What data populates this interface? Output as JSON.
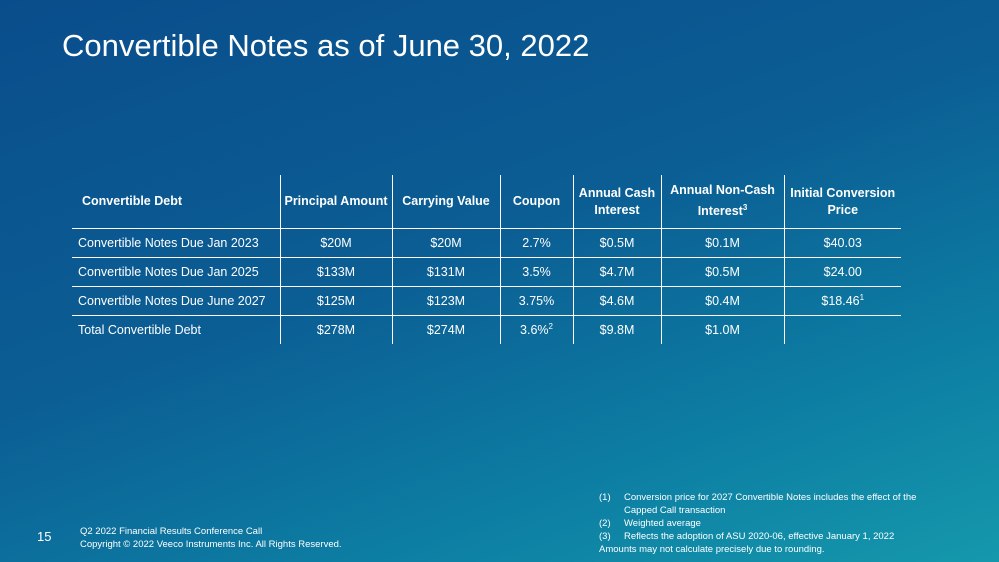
{
  "title": "Convertible Notes as of June 30, 2022",
  "table": {
    "header": [
      {
        "text": "Convertible Debt"
      },
      {
        "text": "Principal Amount"
      },
      {
        "text": "Carrying Value"
      },
      {
        "text": "Coupon"
      },
      {
        "text": "Annual Cash Interest"
      },
      {
        "text": "Annual Non-Cash Interest",
        "sup": "3"
      },
      {
        "text": "Initial Conversion Price"
      }
    ],
    "rows": [
      [
        {
          "text": "Convertible Notes Due Jan 2023"
        },
        {
          "text": "$20M"
        },
        {
          "text": "$20M"
        },
        {
          "text": "2.7%"
        },
        {
          "text": "$0.5M"
        },
        {
          "text": "$0.1M"
        },
        {
          "text": "$40.03"
        }
      ],
      [
        {
          "text": "Convertible Notes Due Jan 2025"
        },
        {
          "text": "$133M"
        },
        {
          "text": "$131M"
        },
        {
          "text": "3.5%"
        },
        {
          "text": "$4.7M"
        },
        {
          "text": "$0.5M"
        },
        {
          "text": "$24.00"
        }
      ],
      [
        {
          "text": "Convertible Notes Due June 2027"
        },
        {
          "text": "$125M"
        },
        {
          "text": "$123M"
        },
        {
          "text": "3.75%"
        },
        {
          "text": "$4.6M"
        },
        {
          "text": "$0.4M"
        },
        {
          "text": "$18.46",
          "sup": "1"
        }
      ],
      [
        {
          "text": "Total Convertible Debt"
        },
        {
          "text": "$278M"
        },
        {
          "text": "$274M"
        },
        {
          "text": "3.6%",
          "sup": "2"
        },
        {
          "text": "$9.8M"
        },
        {
          "text": "$1.0M"
        },
        {
          "text": ""
        }
      ]
    ]
  },
  "footnotes": [
    {
      "mark": "(1)",
      "text": "Conversion price for 2027 Convertible Notes includes the effect of the Capped Call transaction"
    },
    {
      "mark": "(2)",
      "text": "Weighted average"
    },
    {
      "mark": "(3)",
      "text": "Reflects the adoption of ASU 2020-06, effective January 1, 2022"
    }
  ],
  "note": "Amounts may not calculate precisely due to rounding.",
  "footer": {
    "page": "15",
    "line1": "Q2 2022 Financial Results Conference Call",
    "line2": "Copyright © 2022 Veeco Instruments Inc. All Rights Reserved."
  }
}
